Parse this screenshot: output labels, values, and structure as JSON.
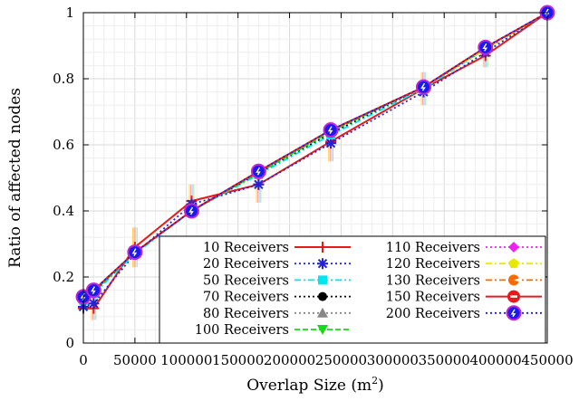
{
  "chart_data": {
    "type": "line",
    "title": "",
    "xlabel": "Overlap Size (m",
    "xlabel_sup": "2",
    "xlabel_close": ")",
    "ylabel": "Ratio of affected nodes",
    "xlim": [
      0,
      450000
    ],
    "ylim": [
      0,
      1
    ],
    "grid": true,
    "legend_placement": "bottom-right",
    "x_ticks": [
      0,
      50000,
      100000,
      150000,
      200000,
      250000,
      300000,
      350000,
      400000,
      450000
    ],
    "x_tick_labels": [
      "0",
      "50000",
      "100000",
      "150000",
      "200000",
      "250000",
      "300000",
      "350000",
      "400000",
      "450000"
    ],
    "y_ticks": [
      0,
      0.2,
      0.4,
      0.6,
      0.8,
      1
    ],
    "y_tick_labels": [
      "0",
      "0.2",
      "0.4",
      "0.6",
      "0.8",
      "1"
    ],
    "x": [
      0,
      10000,
      50000,
      105000,
      170000,
      240000,
      330000,
      390000,
      450000
    ],
    "series": [
      {
        "name": "10 Receivers",
        "color": "#e41a1c",
        "dash": "solid",
        "marker": "plus",
        "values": [
          0.105,
          0.105,
          0.29,
          0.43,
          0.48,
          0.61,
          0.77,
          0.87,
          1.0
        ]
      },
      {
        "name": "20 Receivers",
        "color": "#2323d6",
        "dash": "dotted",
        "marker": "star",
        "values": [
          0.11,
          0.12,
          0.27,
          0.42,
          0.48,
          0.605,
          0.76,
          0.88,
          1.0
        ]
      },
      {
        "name": "50 Receivers",
        "color": "#00e5ee",
        "dash": "dashdot",
        "marker": "square",
        "values": [
          0.13,
          0.15,
          0.27,
          0.4,
          0.51,
          0.63,
          0.77,
          0.89,
          1.0
        ]
      },
      {
        "name": "70 Receivers",
        "color": "#000000",
        "dash": "dotted",
        "marker": "circle",
        "values": [
          0.13,
          0.155,
          0.275,
          0.4,
          0.515,
          0.635,
          0.775,
          0.89,
          1.0
        ]
      },
      {
        "name": "80 Receivers",
        "color": "#888888",
        "dash": "dotted",
        "marker": "triangle",
        "values": [
          0.135,
          0.155,
          0.275,
          0.4,
          0.515,
          0.64,
          0.775,
          0.89,
          1.0
        ]
      },
      {
        "name": "100 Receivers",
        "color": "#11dd11",
        "dash": "dashed",
        "marker": "triangle-down",
        "values": [
          0.135,
          0.155,
          0.275,
          0.4,
          0.515,
          0.64,
          0.775,
          0.89,
          1.0
        ]
      },
      {
        "name": "110 Receivers",
        "color": "#ee22ee",
        "dash": "dotted",
        "marker": "diamond",
        "values": [
          0.135,
          0.16,
          0.275,
          0.4,
          0.52,
          0.645,
          0.775,
          0.89,
          1.0
        ]
      },
      {
        "name": "120 Receivers",
        "color": "#e8e800",
        "dash": "dashdot",
        "marker": "pentagon",
        "values": [
          0.135,
          0.16,
          0.275,
          0.4,
          0.52,
          0.645,
          0.775,
          0.89,
          1.0
        ]
      },
      {
        "name": "130 Receivers",
        "color": "#ff6a00",
        "dash": "dashdot",
        "marker": "circle-notch",
        "values": [
          0.14,
          0.16,
          0.275,
          0.4,
          0.52,
          0.645,
          0.775,
          0.895,
          1.0
        ]
      },
      {
        "name": "150 Receivers",
        "color": "#e41a1c",
        "dash": "solid",
        "marker": "circle-bar",
        "values": [
          0.14,
          0.16,
          0.275,
          0.4,
          0.52,
          0.645,
          0.775,
          0.895,
          1.0
        ]
      },
      {
        "name": "200 Receivers",
        "color": "#1a1aee",
        "dash": "dotted",
        "marker": "circle-big",
        "values": [
          0.14,
          0.16,
          0.275,
          0.4,
          0.52,
          0.645,
          0.775,
          0.895,
          1.0
        ]
      }
    ]
  }
}
